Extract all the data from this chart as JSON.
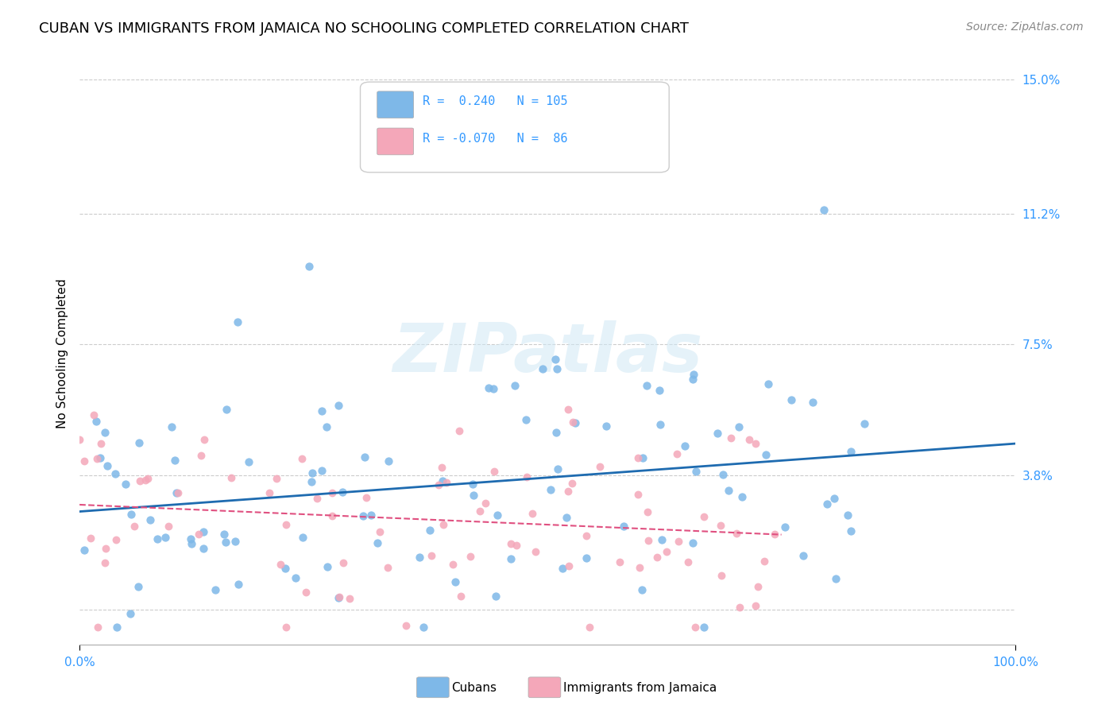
{
  "title": "CUBAN VS IMMIGRANTS FROM JAMAICA NO SCHOOLING COMPLETED CORRELATION CHART",
  "source": "Source: ZipAtlas.com",
  "ylabel": "No Schooling Completed",
  "xlabel": "",
  "xlim": [
    0,
    1.0
  ],
  "ylim": [
    -0.01,
    0.155
  ],
  "xticks": [
    0.0,
    1.0
  ],
  "xticklabels": [
    "0.0%",
    "100.0%"
  ],
  "yticks_right": [
    0.0,
    0.038,
    0.075,
    0.112,
    0.15
  ],
  "ytick_labels_right": [
    "",
    "3.8%",
    "7.5%",
    "11.2%",
    "15.0%"
  ],
  "blue_color": "#7EB8E8",
  "pink_color": "#F4A7B9",
  "blue_line_color": "#1E6BB0",
  "pink_line_color": "#E05080",
  "legend_blue_label": "Cubans",
  "legend_pink_label": "Immigrants from Jamaica",
  "R_blue": 0.24,
  "N_blue": 105,
  "R_pink": -0.07,
  "N_pink": 86,
  "watermark": "ZIPatlas",
  "title_fontsize": 13,
  "axis_label_fontsize": 11,
  "tick_fontsize": 11,
  "source_fontsize": 10,
  "legend_fontsize": 11,
  "annotation_color": "#3399FF",
  "grid_color": "#CCCCCC"
}
